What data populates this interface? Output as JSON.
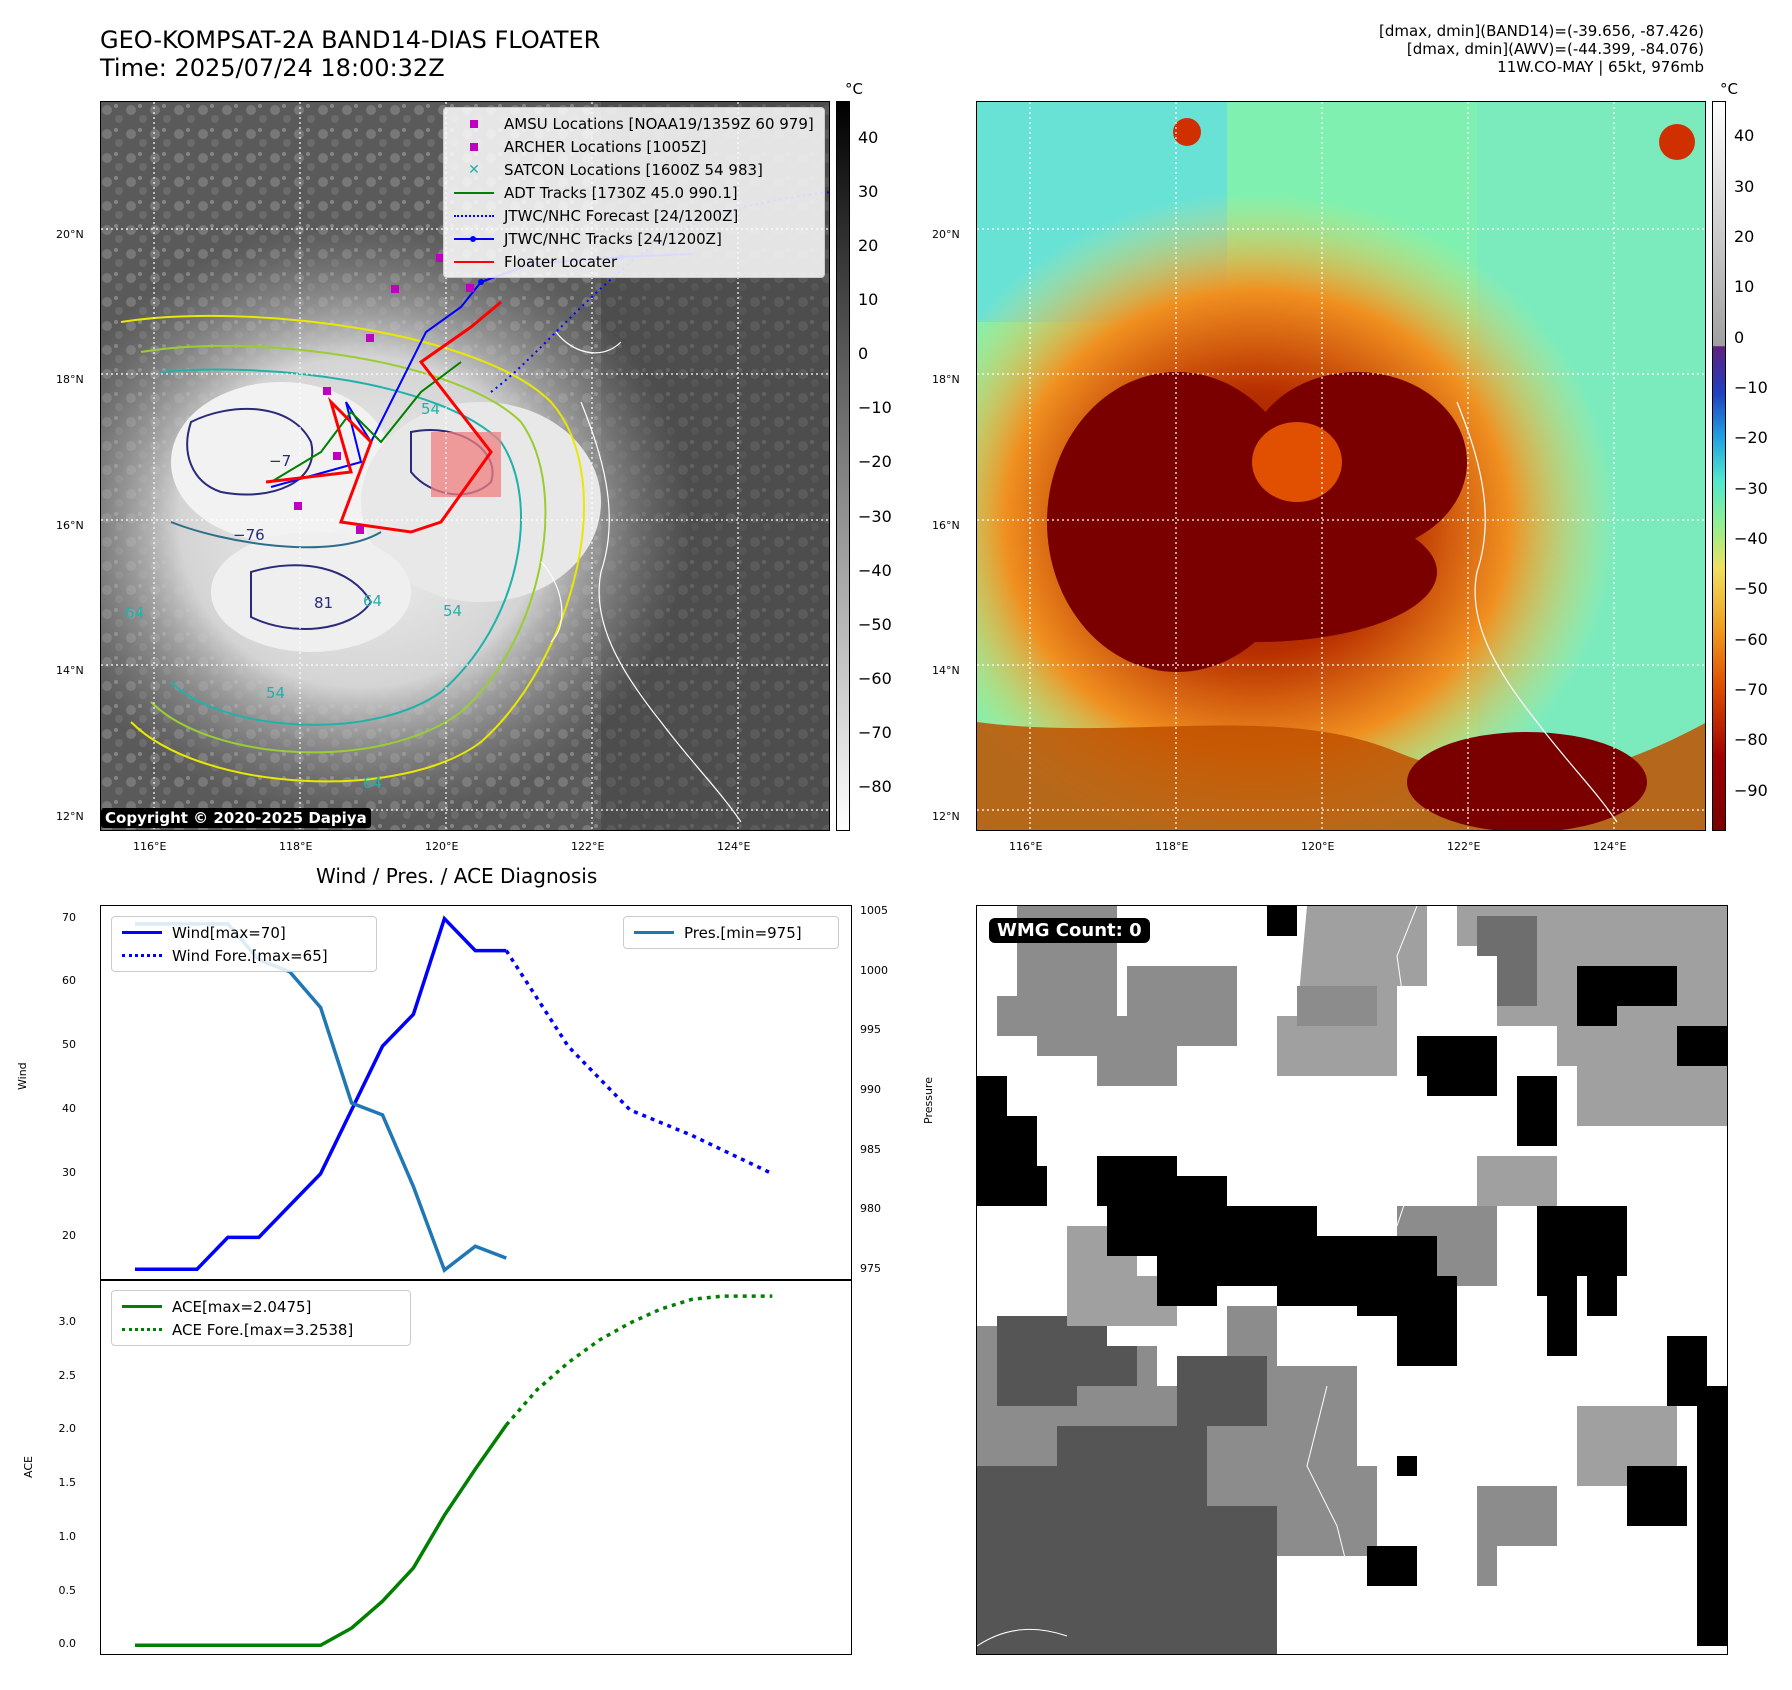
{
  "header": {
    "title_line1": "GEO-KOMPSAT-2A BAND14-DIAS FLOATER",
    "title_line2": "Time: 2025/07/24 18:00:32Z",
    "info_line1": "[dmax, dmin](BAND14)=(-39.656, -87.426)",
    "info_line2": "[dmax, dmin](AWV)=(-44.399, -84.076)",
    "info_line3": "11W.CO-MAY | 65kt, 976mb"
  },
  "ir_map": {
    "unit": "°C",
    "colorbar_ticks": [
      "40",
      "30",
      "20",
      "10",
      "0",
      "−10",
      "−20",
      "−30",
      "−40",
      "−50",
      "−60",
      "−70",
      "−80"
    ],
    "lat_labels": [
      "20°N",
      "18°N",
      "16°N",
      "14°N",
      "12°N"
    ],
    "lon_labels": [
      "116°E",
      "118°E",
      "120°E",
      "122°E",
      "124°E"
    ],
    "copyright": "Copyright © 2020-2025 Dapiya",
    "contour_labels": [
      "−76",
      "64",
      "54",
      "81",
      "−7",
      "54",
      "54",
      "64",
      "64"
    ],
    "legend": [
      {
        "label": "AMSU Locations [NOAA19/1359Z 60 979]",
        "symbol": "square",
        "color": "#c000c0"
      },
      {
        "label": "ARCHER Locations [1005Z]",
        "symbol": "square",
        "color": "#c000c0"
      },
      {
        "label": "SATCON Locations [1600Z 54 983]",
        "symbol": "x",
        "color": "#20b0b0"
      },
      {
        "label": "ADT Tracks [1730Z 45.0 990.1]",
        "symbol": "line",
        "color": "#008000"
      },
      {
        "label": "JTWC/NHC Forecast [24/1200Z]",
        "symbol": "dotted",
        "color": "#0000ff"
      },
      {
        "label": "JTWC/NHC Tracks [24/1200Z]",
        "symbol": "line-dot",
        "color": "#0000ff"
      },
      {
        "label": "Floater Locater",
        "symbol": "line",
        "color": "#ff0000"
      }
    ]
  },
  "wv_map": {
    "unit": "°C",
    "colorbar_ticks": [
      "40",
      "30",
      "20",
      "10",
      "0",
      "−10",
      "−20",
      "−30",
      "−40",
      "−50",
      "−60",
      "−70",
      "−80",
      "−90"
    ],
    "lat_labels": [
      "20°N",
      "18°N",
      "16°N",
      "14°N",
      "12°N"
    ],
    "lon_labels": [
      "116°E",
      "118°E",
      "120°E",
      "122°E",
      "124°E"
    ]
  },
  "wmg": {
    "badge": "WMG Count: 0"
  },
  "chart_data": [
    {
      "type": "line",
      "title": "Wind / Pres. / ACE Diagnosis",
      "ylabel": "Wind",
      "ylabel_right": "Pressure",
      "ylim": [
        13,
        72
      ],
      "ylim_right": [
        974,
        1005.5
      ],
      "yticks": [
        20,
        30,
        40,
        50,
        60,
        70
      ],
      "yticks_right": [
        975,
        980,
        985,
        990,
        995,
        1000,
        1005
      ],
      "series": [
        {
          "name": "Wind[max=70]",
          "axis": "left",
          "color": "#0000ff",
          "style": "solid",
          "x": [
            0,
            1,
            2,
            3,
            4,
            5,
            6,
            7,
            8,
            9,
            10,
            11,
            12
          ],
          "values": [
            15,
            15,
            15,
            20,
            20,
            25,
            30,
            40,
            50,
            55,
            70,
            65,
            65
          ]
        },
        {
          "name": "Wind Fore.[max=65]",
          "axis": "left",
          "color": "#0000ff",
          "style": "dotted",
          "x": [
            12,
            14,
            16,
            18,
            20.6
          ],
          "values": [
            65,
            50,
            40,
            36,
            30
          ]
        },
        {
          "name": "Pres.[min=975]",
          "axis": "right",
          "color": "#1f77b4",
          "style": "solid",
          "x": [
            0,
            1,
            2,
            3,
            4,
            5,
            6,
            7,
            8,
            9,
            10,
            11,
            12
          ],
          "values": [
            1004,
            1004,
            1004,
            1004,
            1001,
            1000,
            997,
            989,
            988,
            982,
            975,
            977,
            976
          ]
        }
      ]
    },
    {
      "type": "line",
      "ylabel": "ACE",
      "ylim": [
        -0.1,
        3.4
      ],
      "yticks": [
        "0.0",
        "0.5",
        "1.0",
        "1.5",
        "2.0",
        "2.5",
        "3.0"
      ],
      "series": [
        {
          "name": "ACE[max=2.0475]",
          "color": "#008000",
          "style": "solid",
          "x": [
            0,
            1,
            2,
            3,
            4,
            5,
            6,
            7,
            8,
            9,
            10,
            11,
            12
          ],
          "values": [
            0,
            0,
            0,
            0,
            0,
            0,
            0,
            0.16,
            0.41,
            0.72,
            1.21,
            1.64,
            2.05
          ]
        },
        {
          "name": "ACE Fore.[max=3.2538]",
          "color": "#008000",
          "style": "dotted",
          "x": [
            12,
            13,
            14,
            15,
            16,
            17,
            18,
            19,
            20,
            20.6
          ],
          "values": [
            2.05,
            2.38,
            2.63,
            2.84,
            3.0,
            3.13,
            3.22,
            3.25,
            3.25,
            3.25
          ]
        }
      ]
    }
  ]
}
